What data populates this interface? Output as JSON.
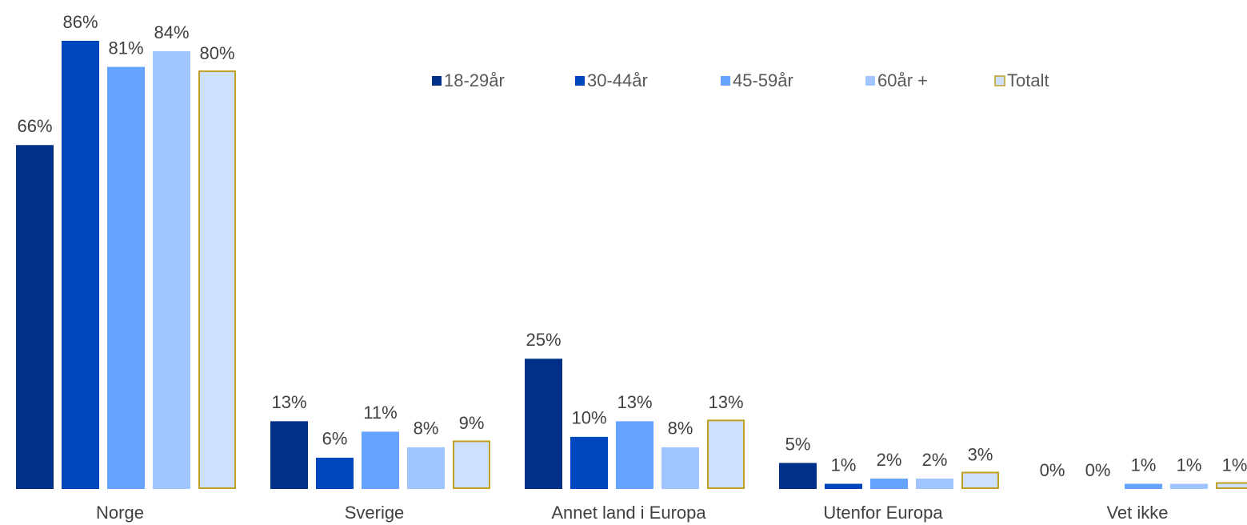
{
  "chart_data": {
    "type": "bar",
    "categories": [
      "Norge",
      "Sverige",
      "Annet land i Europa",
      "Utenfor Europa",
      "Vet ikke"
    ],
    "series": [
      {
        "name": "18-29år",
        "color": "#003087",
        "values": [
          66,
          13,
          25,
          5,
          0
        ],
        "value_labels": [
          "66%",
          "13%",
          "25%",
          "5%",
          "0%"
        ]
      },
      {
        "name": "30-44år",
        "color": "#0047bf",
        "values": [
          86,
          6,
          10,
          1,
          0
        ],
        "value_labels": [
          "86%",
          "6%",
          "10%",
          "1%",
          "0%"
        ]
      },
      {
        "name": "45-59år",
        "color": "#66a3ff",
        "values": [
          81,
          11,
          13,
          2,
          1
        ],
        "value_labels": [
          "81%",
          "11%",
          "13%",
          "2%",
          "1%"
        ]
      },
      {
        "name": "60år +",
        "color": "#9fc4ff",
        "values": [
          84,
          8,
          8,
          2,
          1
        ],
        "value_labels": [
          "84%",
          "8%",
          "8%",
          "2%",
          "1%"
        ]
      },
      {
        "name": "Totalt",
        "color": "#cfe0ff",
        "edgecolor": "#c0a020",
        "values": [
          80,
          9,
          13,
          3,
          1
        ],
        "value_labels": [
          "80%",
          "9%",
          "13%",
          "3%",
          "1%"
        ]
      }
    ],
    "legend": "top"
  }
}
